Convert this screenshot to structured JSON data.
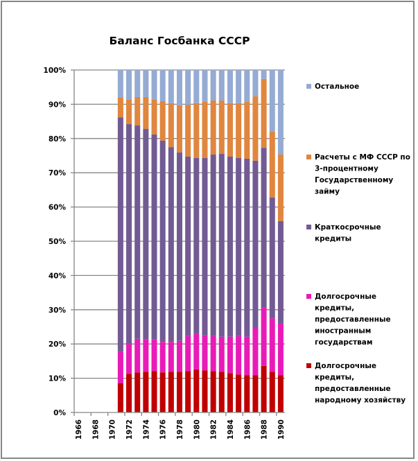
{
  "chart_data": {
    "type": "bar",
    "stacked": "percent",
    "title": "Баланс Госбанка СССР",
    "xlabel": "",
    "ylabel": "",
    "ylim": [
      0,
      100
    ],
    "y_ticks": [
      "0%",
      "10%",
      "20%",
      "30%",
      "40%",
      "50%",
      "60%",
      "70%",
      "80%",
      "90%",
      "100%"
    ],
    "x_categories": [
      1966,
      1967,
      1968,
      1969,
      1970,
      1971,
      1972,
      1973,
      1974,
      1975,
      1976,
      1977,
      1978,
      1979,
      1980,
      1981,
      1982,
      1983,
      1984,
      1985,
      1986,
      1987,
      1988,
      1989,
      1990
    ],
    "x_tick_labels": [
      "1966",
      "1968",
      "1970",
      "1972",
      "1974",
      "1976",
      "1978",
      "1980",
      "1982",
      "1984",
      "1986",
      "1988",
      "1990"
    ],
    "grid": "horizontal",
    "legend_position": "right",
    "data_years": [
      1971,
      1972,
      1973,
      1974,
      1975,
      1976,
      1977,
      1978,
      1979,
      1980,
      1981,
      1982,
      1983,
      1984,
      1985,
      1986,
      1987,
      1988,
      1989,
      1990
    ],
    "series": [
      {
        "name": "Долгосрочные кредиты, предоставленные народному хозяйству",
        "legend_lines": [
          "Долгосрочные",
          "кредиты,",
          "предоставленные",
          "народному хозяйству"
        ],
        "color": "#C00000",
        "values": [
          8.5,
          11.3,
          11.7,
          11.9,
          12.1,
          11.7,
          11.9,
          11.9,
          12.1,
          12.6,
          12.3,
          12.1,
          11.9,
          11.5,
          11.1,
          10.9,
          10.9,
          13.6,
          11.9,
          10.9
        ]
      },
      {
        "name": "Долгосрочные кредиты, предоставленные иностранным государствам",
        "legend_lines": [
          "Долгосрочные",
          "кредиты,",
          "предоставленные",
          "иностранным",
          "государствам"
        ],
        "color": "#E91BB8",
        "values": [
          9.3,
          8.7,
          9.8,
          9.4,
          9.2,
          8.9,
          8.7,
          9.0,
          10.2,
          10.3,
          10.2,
          10.2,
          10.2,
          10.6,
          11.2,
          11.2,
          14.0,
          17.0,
          15.6,
          15.0
        ]
      },
      {
        "name": "Краткосрочные кредиты",
        "legend_lines": [
          "Краткосрочные",
          "кредиты"
        ],
        "color": "#725B93",
        "values": [
          68.4,
          64.2,
          62.3,
          61.5,
          59.9,
          58.8,
          56.9,
          55.0,
          52.4,
          51.4,
          51.8,
          53.0,
          53.4,
          52.6,
          52.0,
          52.0,
          48.6,
          46.7,
          35.3,
          30.0
        ]
      },
      {
        "name": "Расчеты с МФ СССР по 3-процентному Государственному займу",
        "legend_lines": [
          "Расчеты с МФ СССР по",
          "3-процентному",
          "Государственному",
          "займу"
        ],
        "color": "#E0863E",
        "values": [
          5.7,
          7.1,
          8.3,
          9.3,
          10.1,
          11.5,
          12.8,
          13.8,
          15.2,
          16.0,
          16.4,
          15.8,
          15.6,
          15.6,
          16.0,
          16.6,
          18.8,
          20.1,
          19.2,
          19.4
        ]
      },
      {
        "name": "Остальное",
        "legend_lines": [
          "Остальное"
        ],
        "color": "#95ABD3",
        "values": [
          8.1,
          8.7,
          7.9,
          7.9,
          8.7,
          9.1,
          9.7,
          10.3,
          10.1,
          9.7,
          9.3,
          8.9,
          8.9,
          9.7,
          9.7,
          9.3,
          7.7,
          2.6,
          18.0,
          24.7
        ]
      }
    ]
  }
}
